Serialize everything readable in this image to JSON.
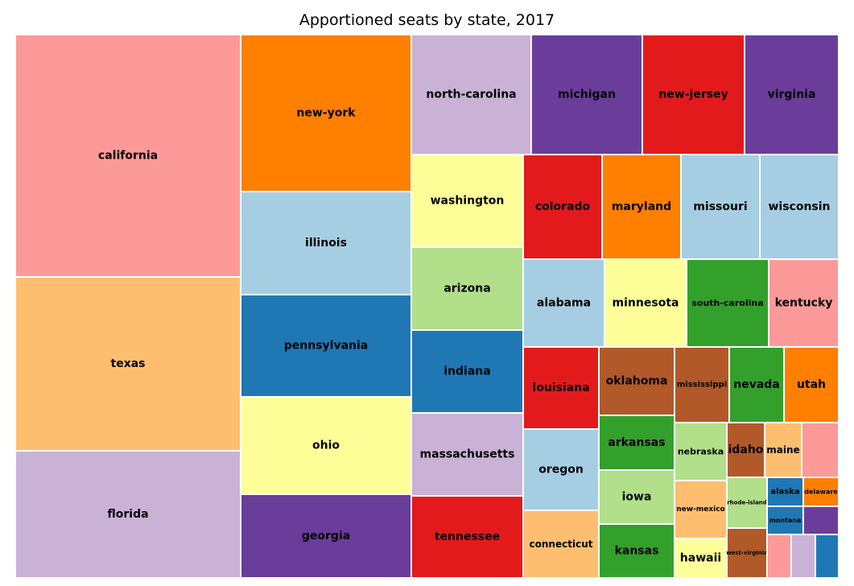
{
  "chart_data": {
    "type": "treemap",
    "title": "Apportioned seats by state, 2017",
    "colors": [
      "#a6cee3",
      "#1f78b4",
      "#b2df8a",
      "#33a02c",
      "#fb9a99",
      "#e31a1c",
      "#fdbf6f",
      "#ff7f00",
      "#cab2d6",
      "#6a3d9a",
      "#ffff99",
      "#b15928"
    ],
    "items": [
      {
        "label": "california",
        "value": 53,
        "color": "#fb9a99"
      },
      {
        "label": "texas",
        "value": 36,
        "color": "#fdbf6f"
      },
      {
        "label": "florida",
        "value": 27,
        "color": "#cab2d6"
      },
      {
        "label": "new-york",
        "value": 27,
        "color": "#ff7f00"
      },
      {
        "label": "illinois",
        "value": 18,
        "color": "#a6cee3"
      },
      {
        "label": "pennsylvania",
        "value": 18,
        "color": "#1f78b4"
      },
      {
        "label": "ohio",
        "value": 16,
        "color": "#ffff99"
      },
      {
        "label": "georgia",
        "value": 14,
        "color": "#6a3d9a"
      },
      {
        "label": "north-carolina",
        "value": 13,
        "color": "#cab2d6"
      },
      {
        "label": "michigan",
        "value": 14,
        "color": "#6a3d9a"
      },
      {
        "label": "new-jersey",
        "value": 12,
        "color": "#e31a1c"
      },
      {
        "label": "virginia",
        "value": 11,
        "color": "#6a3d9a"
      },
      {
        "label": "washington",
        "value": 10,
        "color": "#ffff99"
      },
      {
        "label": "arizona",
        "value": 9,
        "color": "#b2df8a"
      },
      {
        "label": "indiana",
        "value": 9,
        "color": "#1f78b4"
      },
      {
        "label": "massachusetts",
        "value": 9,
        "color": "#cab2d6"
      },
      {
        "label": "tennessee",
        "value": 9,
        "color": "#e31a1c"
      },
      {
        "label": "colorado",
        "value": 7,
        "color": "#e31a1c"
      },
      {
        "label": "maryland",
        "value": 8,
        "color": "#ff7f00"
      },
      {
        "label": "missouri",
        "value": 8,
        "color": "#a6cee3"
      },
      {
        "label": "wisconsin",
        "value": 8,
        "color": "#a6cee3"
      },
      {
        "label": "alabama",
        "value": 7,
        "color": "#a6cee3"
      },
      {
        "label": "minnesota",
        "value": 8,
        "color": "#ffff99"
      },
      {
        "label": "south-carolina",
        "value": 7,
        "color": "#33a02c"
      },
      {
        "label": "kentucky",
        "value": 6,
        "color": "#fb9a99"
      },
      {
        "label": "louisiana",
        "value": 6,
        "color": "#e31a1c"
      },
      {
        "label": "oregon",
        "value": 5,
        "color": "#a6cee3"
      },
      {
        "label": "connecticut",
        "value": 5,
        "color": "#fdbf6f"
      },
      {
        "label": "oklahoma",
        "value": 5,
        "color": "#b15928"
      },
      {
        "label": "arkansas",
        "value": 4,
        "color": "#33a02c"
      },
      {
        "label": "iowa",
        "value": 4,
        "color": "#b2df8a"
      },
      {
        "label": "kansas",
        "value": 4,
        "color": "#33a02c"
      },
      {
        "label": "mississippi",
        "value": 4,
        "color": "#b15928"
      },
      {
        "label": "nevada",
        "value": 4,
        "color": "#33a02c"
      },
      {
        "label": "utah",
        "value": 4,
        "color": "#ff7f00"
      },
      {
        "label": "nebraska",
        "value": 3,
        "color": "#b2df8a"
      },
      {
        "label": "new-mexico",
        "value": 3,
        "color": "#fdbf6f"
      },
      {
        "label": "hawaii",
        "value": 2,
        "color": "#ffff99"
      },
      {
        "label": "idaho",
        "value": 2,
        "color": "#b15928"
      },
      {
        "label": "maine",
        "value": 2,
        "color": "#fdbf6f"
      },
      {
        "label": "",
        "value": 2,
        "color": "#fb9a99"
      },
      {
        "label": "rhode-island",
        "value": 2,
        "color": "#b2df8a"
      },
      {
        "label": "west-virginia",
        "value": 3,
        "color": "#b15928"
      },
      {
        "label": "alaska",
        "value": 1,
        "color": "#1f78b4"
      },
      {
        "label": "delaware",
        "value": 1,
        "color": "#ff7f00"
      },
      {
        "label": "montana",
        "value": 1,
        "color": "#1f78b4"
      },
      {
        "label": "",
        "value": 1,
        "color": "#6a3d9a"
      },
      {
        "label": "",
        "value": 1,
        "color": "#fb9a99"
      },
      {
        "label": "",
        "value": 1,
        "color": "#cab2d6"
      },
      {
        "label": "",
        "value": 1,
        "color": "#1f78b4"
      }
    ]
  }
}
